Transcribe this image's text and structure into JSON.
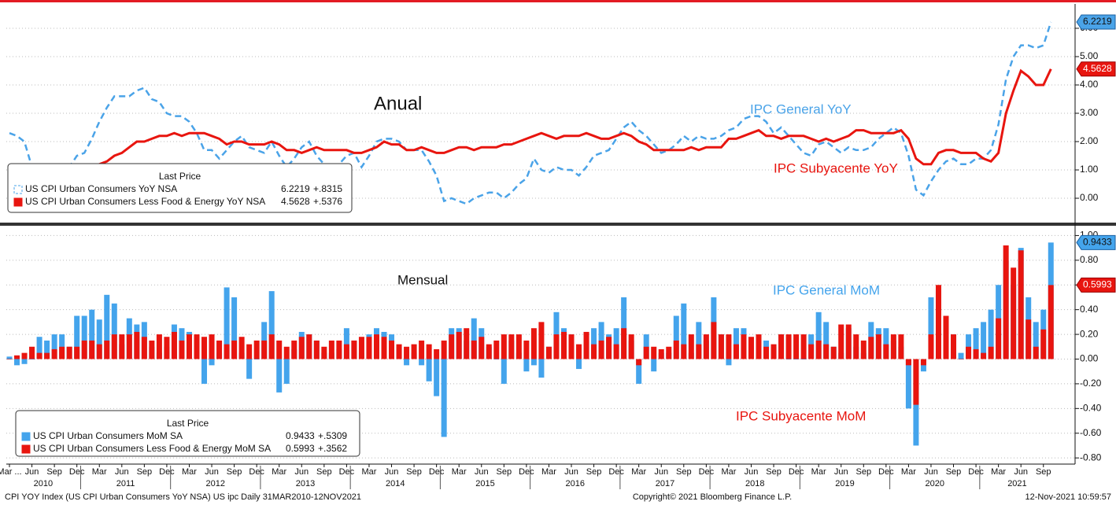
{
  "x_axis": {
    "x": [
      "2010-03",
      "2010-04",
      "2010-05",
      "2010-06",
      "2010-07",
      "2010-08",
      "2010-09",
      "2010-10",
      "2010-11",
      "2010-12",
      "2011-01",
      "2011-02",
      "2011-03",
      "2011-04",
      "2011-05",
      "2011-06",
      "2011-07",
      "2011-08",
      "2011-09",
      "2011-10",
      "2011-11",
      "2011-12",
      "2012-01",
      "2012-02",
      "2012-03",
      "2012-04",
      "2012-05",
      "2012-06",
      "2012-07",
      "2012-08",
      "2012-09",
      "2012-10",
      "2012-11",
      "2012-12",
      "2013-01",
      "2013-02",
      "2013-03",
      "2013-04",
      "2013-05",
      "2013-06",
      "2013-07",
      "2013-08",
      "2013-09",
      "2013-10",
      "2013-11",
      "2013-12",
      "2014-01",
      "2014-02",
      "2014-03",
      "2014-04",
      "2014-05",
      "2014-06",
      "2014-07",
      "2014-08",
      "2014-09",
      "2014-10",
      "2014-11",
      "2014-12",
      "2015-01",
      "2015-02",
      "2015-03",
      "2015-04",
      "2015-05",
      "2015-06",
      "2015-07",
      "2015-08",
      "2015-09",
      "2015-10",
      "2015-11",
      "2015-12",
      "2016-01",
      "2016-02",
      "2016-03",
      "2016-04",
      "2016-05",
      "2016-06",
      "2016-07",
      "2016-08",
      "2016-09",
      "2016-10",
      "2016-11",
      "2016-12",
      "2017-01",
      "2017-02",
      "2017-03",
      "2017-04",
      "2017-05",
      "2017-06",
      "2017-07",
      "2017-08",
      "2017-09",
      "2017-10",
      "2017-11",
      "2017-12",
      "2018-01",
      "2018-02",
      "2018-03",
      "2018-04",
      "2018-05",
      "2018-06",
      "2018-07",
      "2018-08",
      "2018-09",
      "2018-10",
      "2018-11",
      "2018-12",
      "2019-01",
      "2019-02",
      "2019-03",
      "2019-04",
      "2019-05",
      "2019-06",
      "2019-07",
      "2019-08",
      "2019-09",
      "2019-10",
      "2019-11",
      "2019-12",
      "2020-01",
      "2020-02",
      "2020-03",
      "2020-04",
      "2020-05",
      "2020-06",
      "2020-07",
      "2020-08",
      "2020-09",
      "2020-10",
      "2020-11",
      "2020-12",
      "2021-01",
      "2021-02",
      "2021-03",
      "2021-04",
      "2021-05",
      "2021-06",
      "2021-07",
      "2021-08",
      "2021-09",
      "2021-10"
    ],
    "xticks": [
      {
        "value": "2010-03",
        "label": "Mar ..."
      },
      {
        "value": "2010-06",
        "label": "Jun"
      },
      {
        "value": "2010-09",
        "label": "Sep"
      },
      {
        "value": "2010-12",
        "label": "Dec"
      },
      {
        "value": "2011-03",
        "label": "Mar"
      },
      {
        "value": "2011-06",
        "label": "Jun"
      },
      {
        "value": "2011-09",
        "label": "Sep"
      },
      {
        "value": "2011-12",
        "label": "Dec"
      },
      {
        "value": "2012-03",
        "label": "Mar"
      },
      {
        "value": "2012-06",
        "label": "Jun"
      },
      {
        "value": "2012-09",
        "label": "Sep"
      },
      {
        "value": "2012-12",
        "label": "Dec"
      },
      {
        "value": "2013-03",
        "label": "Mar"
      },
      {
        "value": "2013-06",
        "label": "Jun"
      },
      {
        "value": "2013-09",
        "label": "Sep"
      },
      {
        "value": "2013-12",
        "label": "Dec"
      },
      {
        "value": "2014-03",
        "label": "Mar"
      },
      {
        "value": "2014-06",
        "label": "Jun"
      },
      {
        "value": "2014-09",
        "label": "Sep"
      },
      {
        "value": "2014-12",
        "label": "Dec"
      },
      {
        "value": "2015-03",
        "label": "Mar"
      },
      {
        "value": "2015-06",
        "label": "Jun"
      },
      {
        "value": "2015-09",
        "label": "Sep"
      },
      {
        "value": "2015-12",
        "label": "Dec"
      },
      {
        "value": "2016-03",
        "label": "Mar"
      },
      {
        "value": "2016-06",
        "label": "Jun"
      },
      {
        "value": "2016-09",
        "label": "Sep"
      },
      {
        "value": "2016-12",
        "label": "Dec"
      },
      {
        "value": "2017-03",
        "label": "Mar"
      },
      {
        "value": "2017-06",
        "label": "Jun"
      },
      {
        "value": "2017-09",
        "label": "Sep"
      },
      {
        "value": "2017-12",
        "label": "Dec"
      },
      {
        "value": "2018-03",
        "label": "Mar"
      },
      {
        "value": "2018-06",
        "label": "Jun"
      },
      {
        "value": "2018-09",
        "label": "Sep"
      },
      {
        "value": "2018-12",
        "label": "Dec"
      },
      {
        "value": "2019-03",
        "label": "Mar"
      },
      {
        "value": "2019-06",
        "label": "Jun"
      },
      {
        "value": "2019-09",
        "label": "Sep"
      },
      {
        "value": "2019-12",
        "label": "Dec"
      },
      {
        "value": "2020-03",
        "label": "Mar"
      },
      {
        "value": "2020-06",
        "label": "Jun"
      },
      {
        "value": "2020-09",
        "label": "Sep"
      },
      {
        "value": "2020-12",
        "label": "Dec"
      },
      {
        "value": "2021-03",
        "label": "Mar"
      },
      {
        "value": "2021-06",
        "label": "Jun"
      },
      {
        "value": "2021-09",
        "label": "Sep"
      }
    ],
    "years": [
      "2010",
      "2011",
      "2012",
      "2013",
      "2014",
      "2015",
      "2016",
      "2017",
      "2018",
      "2019",
      "2020",
      "2021"
    ]
  },
  "chart_data": [
    {
      "type": "line",
      "title": "Anual",
      "ylim": [
        -0.86,
        6.86
      ],
      "yticks": [
        {
          "value": 0,
          "label": "0.00"
        },
        {
          "value": 1,
          "label": "1.00"
        },
        {
          "value": 2,
          "label": "2.00"
        },
        {
          "value": 3,
          "label": "3.00"
        },
        {
          "value": 4,
          "label": "4.00"
        },
        {
          "value": 5,
          "label": "5.00"
        },
        {
          "value": 6,
          "label": "6.00"
        }
      ],
      "grid": true,
      "legend_title": "Last Price",
      "series": [
        {
          "name": "US CPI Urban Consumers YoY NSA",
          "label": "IPC General YoY",
          "color": "#4aa3e8",
          "dashed": true,
          "change": "+.8315",
          "values": [
            2.3,
            2.2,
            2.0,
            1.1,
            1.2,
            1.1,
            1.1,
            1.2,
            1.1,
            1.5,
            1.6,
            2.1,
            2.7,
            3.2,
            3.6,
            3.6,
            3.6,
            3.8,
            3.9,
            3.5,
            3.4,
            3.0,
            2.9,
            2.9,
            2.7,
            2.3,
            1.7,
            1.7,
            1.4,
            1.7,
            2.0,
            2.2,
            1.8,
            1.7,
            1.6,
            2.0,
            1.5,
            1.1,
            1.4,
            1.8,
            2.0,
            1.5,
            1.2,
            1.0,
            1.2,
            1.5,
            1.6,
            1.1,
            1.5,
            2.0,
            2.1,
            2.1,
            2.0,
            1.7,
            1.7,
            1.7,
            1.3,
            0.8,
            -0.1,
            0.0,
            -0.1,
            -0.2,
            0.0,
            0.1,
            0.2,
            0.2,
            0.0,
            0.2,
            0.5,
            0.7,
            1.4,
            1.0,
            0.9,
            1.1,
            1.0,
            1.0,
            0.8,
            1.1,
            1.5,
            1.6,
            1.7,
            2.1,
            2.5,
            2.7,
            2.4,
            2.2,
            1.9,
            1.6,
            1.7,
            1.9,
            2.2,
            2.0,
            2.2,
            2.1,
            2.1,
            2.2,
            2.4,
            2.5,
            2.8,
            2.9,
            2.9,
            2.7,
            2.3,
            2.5,
            2.2,
            1.9,
            1.6,
            1.5,
            1.9,
            2.0,
            1.8,
            1.6,
            1.8,
            1.7,
            1.7,
            1.8,
            2.1,
            2.3,
            2.5,
            2.3,
            1.5,
            0.3,
            0.1,
            0.6,
            1.0,
            1.3,
            1.4,
            1.2,
            1.2,
            1.4,
            1.4,
            1.7,
            2.6,
            4.2,
            5.0,
            5.4,
            5.4,
            5.3,
            5.4,
            6.2219
          ]
        },
        {
          "name": "US CPI Urban Consumers Less Food & Energy YoY NSA",
          "label": "IPC Subyacente YoY",
          "color": "#e8150f",
          "dashed": false,
          "change": "+.5376",
          "values": [
            1.1,
            0.9,
            0.9,
            0.9,
            0.9,
            0.9,
            0.8,
            0.6,
            0.8,
            0.8,
            1.0,
            1.1,
            1.2,
            1.3,
            1.5,
            1.6,
            1.8,
            2.0,
            2.0,
            2.1,
            2.2,
            2.2,
            2.3,
            2.2,
            2.3,
            2.3,
            2.3,
            2.2,
            2.1,
            1.9,
            2.0,
            2.0,
            1.9,
            1.9,
            1.9,
            2.0,
            1.9,
            1.7,
            1.7,
            1.6,
            1.7,
            1.8,
            1.7,
            1.7,
            1.7,
            1.7,
            1.6,
            1.6,
            1.7,
            1.8,
            2.0,
            1.9,
            1.9,
            1.7,
            1.7,
            1.8,
            1.7,
            1.6,
            1.6,
            1.7,
            1.8,
            1.8,
            1.7,
            1.8,
            1.8,
            1.8,
            1.9,
            1.9,
            2.0,
            2.1,
            2.2,
            2.3,
            2.2,
            2.1,
            2.2,
            2.2,
            2.2,
            2.3,
            2.2,
            2.1,
            2.1,
            2.2,
            2.3,
            2.2,
            2.0,
            1.9,
            1.7,
            1.7,
            1.7,
            1.7,
            1.7,
            1.8,
            1.7,
            1.8,
            1.8,
            1.8,
            2.1,
            2.1,
            2.2,
            2.3,
            2.4,
            2.2,
            2.2,
            2.1,
            2.2,
            2.2,
            2.2,
            2.1,
            2.0,
            2.1,
            2.0,
            2.1,
            2.2,
            2.4,
            2.4,
            2.3,
            2.3,
            2.3,
            2.3,
            2.4,
            2.1,
            1.4,
            1.2,
            1.2,
            1.6,
            1.7,
            1.7,
            1.6,
            1.6,
            1.6,
            1.4,
            1.3,
            1.6,
            3.0,
            3.8,
            4.5,
            4.3,
            4.0,
            4.0,
            4.5628
          ]
        }
      ]
    },
    {
      "type": "bar",
      "title": "Mensual",
      "ylim": [
        -0.85,
        1.06
      ],
      "yticks": [
        {
          "value": -0.8,
          "label": "-0.80"
        },
        {
          "value": -0.6,
          "label": "-0.60"
        },
        {
          "value": -0.4,
          "label": "-0.40"
        },
        {
          "value": -0.2,
          "label": "-0.20"
        },
        {
          "value": 0,
          "label": "0.00"
        },
        {
          "value": 0.2,
          "label": "0.20"
        },
        {
          "value": 0.4,
          "label": "0.40"
        },
        {
          "value": 0.6,
          "label": "0.60"
        },
        {
          "value": 0.8,
          "label": "0.80"
        },
        {
          "value": 1,
          "label": "1.00"
        }
      ],
      "grid": true,
      "legend_title": "Last Price",
      "series": [
        {
          "name": "US CPI Urban Consumers MoM SA",
          "label": "IPC General MoM",
          "color": "#44a4ec",
          "change": "+.5309",
          "values": [
            0.02,
            -0.05,
            -0.04,
            0.0,
            0.18,
            0.15,
            0.2,
            0.2,
            0.1,
            0.35,
            0.35,
            0.4,
            0.32,
            0.52,
            0.45,
            0.12,
            0.33,
            0.28,
            0.3,
            0.1,
            0.05,
            0.1,
            0.28,
            0.25,
            0.22,
            0.12,
            -0.2,
            -0.05,
            0.05,
            0.58,
            0.5,
            0.05,
            -0.16,
            0.0,
            0.3,
            0.55,
            -0.27,
            -0.2,
            0.08,
            0.22,
            0.2,
            0.15,
            0.05,
            0.05,
            0.08,
            0.25,
            0.15,
            0.05,
            0.2,
            0.25,
            0.22,
            0.2,
            0.1,
            -0.05,
            0.05,
            -0.05,
            -0.18,
            -0.3,
            -0.63,
            0.25,
            0.25,
            0.15,
            0.33,
            0.25,
            0.1,
            0.0,
            -0.2,
            0.15,
            0.05,
            -0.1,
            -0.05,
            -0.15,
            0.1,
            0.38,
            0.25,
            0.2,
            -0.08,
            0.15,
            0.25,
            0.3,
            0.2,
            0.25,
            0.5,
            0.15,
            -0.2,
            0.2,
            -0.1,
            0.05,
            0.05,
            0.35,
            0.45,
            0.05,
            0.3,
            0.15,
            0.5,
            0.2,
            -0.05,
            0.25,
            0.25,
            0.1,
            0.15,
            0.15,
            0.1,
            0.2,
            0.0,
            0.0,
            0.0,
            0.2,
            0.38,
            0.3,
            0.1,
            0.05,
            0.25,
            0.1,
            0.05,
            0.3,
            0.25,
            0.25,
            0.15,
            0.1,
            -0.4,
            -0.7,
            -0.1,
            0.5,
            0.55,
            0.35,
            0.2,
            0.05,
            0.2,
            0.25,
            0.3,
            0.4,
            0.6,
            0.8,
            0.6,
            0.9,
            0.5,
            0.3,
            0.4,
            0.9433
          ]
        },
        {
          "name": "US CPI Urban Consumers Less Food & Energy MoM SA",
          "label": "IPC Subyacente MoM",
          "color": "#e8150f",
          "change": "+.3562",
          "values": [
            0.0,
            0.03,
            0.05,
            0.1,
            0.05,
            0.05,
            0.08,
            0.1,
            0.1,
            0.1,
            0.15,
            0.15,
            0.12,
            0.15,
            0.2,
            0.2,
            0.2,
            0.22,
            0.18,
            0.15,
            0.2,
            0.18,
            0.22,
            0.15,
            0.2,
            0.2,
            0.18,
            0.2,
            0.15,
            0.12,
            0.15,
            0.18,
            0.12,
            0.15,
            0.15,
            0.2,
            0.15,
            0.1,
            0.15,
            0.18,
            0.2,
            0.15,
            0.1,
            0.15,
            0.15,
            0.12,
            0.15,
            0.18,
            0.18,
            0.2,
            0.18,
            0.15,
            0.12,
            0.1,
            0.12,
            0.15,
            0.12,
            0.08,
            0.15,
            0.2,
            0.22,
            0.25,
            0.15,
            0.18,
            0.12,
            0.15,
            0.2,
            0.2,
            0.2,
            0.15,
            0.25,
            0.3,
            0.1,
            0.2,
            0.22,
            0.2,
            0.12,
            0.22,
            0.12,
            0.15,
            0.18,
            0.12,
            0.25,
            0.2,
            -0.05,
            0.1,
            0.1,
            0.08,
            0.1,
            0.15,
            0.12,
            0.2,
            0.12,
            0.2,
            0.3,
            0.2,
            0.2,
            0.12,
            0.2,
            0.18,
            0.2,
            0.1,
            0.12,
            0.2,
            0.2,
            0.2,
            0.2,
            0.12,
            0.15,
            0.12,
            0.1,
            0.28,
            0.28,
            0.2,
            0.15,
            0.18,
            0.2,
            0.12,
            0.2,
            0.2,
            -0.05,
            -0.37,
            -0.05,
            0.2,
            0.6,
            0.35,
            0.2,
            0.0,
            0.1,
            0.08,
            0.05,
            0.1,
            0.33,
            0.92,
            0.74,
            0.88,
            0.32,
            0.1,
            0.24,
            0.5993
          ]
        }
      ]
    }
  ],
  "footer": {
    "left": "CPI YOY Index (US CPI Urban Consumers YoY NSA) US ipc  Daily 31MAR2010-12NOV2021",
    "center": "Copyright© 2021 Bloomberg Finance L.P.",
    "right": "12-Nov-2021 10:59:57"
  }
}
